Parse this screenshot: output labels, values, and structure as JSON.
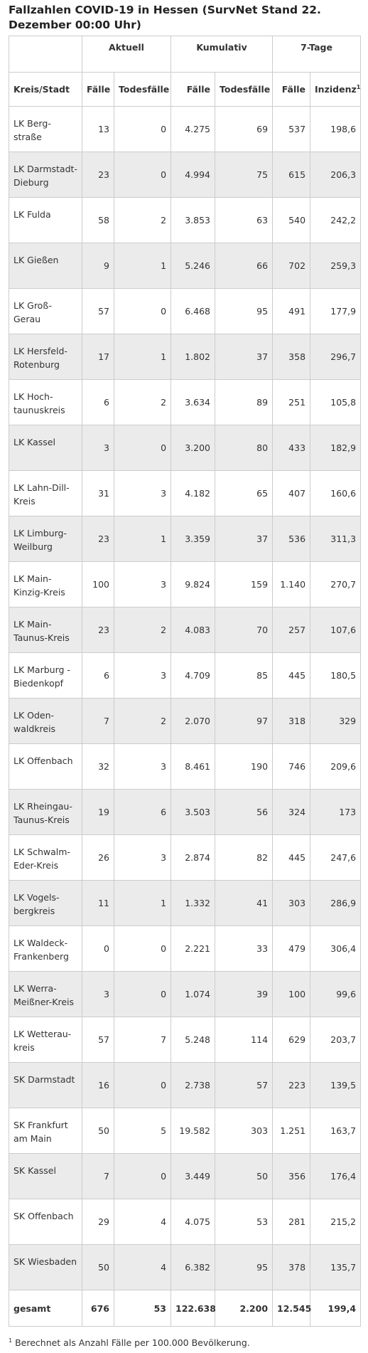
{
  "title": "Fallzahlen COVID-19 in Hessen (SurvNet Stand 22. Dezember 00:00 Uhr)",
  "groups": [
    "Aktuell",
    "Kumulativ",
    "7-Tage"
  ],
  "columns": [
    "Kreis/Stadt",
    "Fälle",
    "Todesfälle",
    "Fälle",
    "Todesfälle",
    "Fälle",
    "Inzidenz"
  ],
  "footnote_marker": "1",
  "rows": [
    [
      "LK Berg-straße",
      "13",
      "0",
      "4.275",
      "69",
      "537",
      "198,6"
    ],
    [
      "LK Darmstadt-Dieburg",
      "23",
      "0",
      "4.994",
      "75",
      "615",
      "206,3"
    ],
    [
      "LK Fulda",
      "58",
      "2",
      "3.853",
      "63",
      "540",
      "242,2"
    ],
    [
      "LK Gießen",
      "9",
      "1",
      "5.246",
      "66",
      "702",
      "259,3"
    ],
    [
      "LK Groß-Gerau",
      "57",
      "0",
      "6.468",
      "95",
      "491",
      "177,9"
    ],
    [
      "LK Hersfeld-Rotenburg",
      "17",
      "1",
      "1.802",
      "37",
      "358",
      "296,7"
    ],
    [
      "LK Hoch-taunuskreis",
      "6",
      "2",
      "3.634",
      "89",
      "251",
      "105,8"
    ],
    [
      "LK Kassel",
      "3",
      "0",
      "3.200",
      "80",
      "433",
      "182,9"
    ],
    [
      "LK Lahn-Dill-Kreis",
      "31",
      "3",
      "4.182",
      "65",
      "407",
      "160,6"
    ],
    [
      "LK Limburg-Weilburg",
      "23",
      "1",
      "3.359",
      "37",
      "536",
      "311,3"
    ],
    [
      "LK Main-Kinzig-Kreis",
      "100",
      "3",
      "9.824",
      "159",
      "1.140",
      "270,7"
    ],
    [
      "LK Main-Taunus-Kreis",
      "23",
      "2",
      "4.083",
      "70",
      "257",
      "107,6"
    ],
    [
      "LK Marburg -Biedenkopf",
      "6",
      "3",
      "4.709",
      "85",
      "445",
      "180,5"
    ],
    [
      "LK Oden-waldkreis",
      "7",
      "2",
      "2.070",
      "97",
      "318",
      "329"
    ],
    [
      "LK Offenbach",
      "32",
      "3",
      "8.461",
      "190",
      "746",
      "209,6"
    ],
    [
      "LK Rheingau-Taunus-Kreis",
      "19",
      "6",
      "3.503",
      "56",
      "324",
      "173"
    ],
    [
      "LK Schwalm-Eder-Kreis",
      "26",
      "3",
      "2.874",
      "82",
      "445",
      "247,6"
    ],
    [
      "LK Vogels-bergkreis",
      "11",
      "1",
      "1.332",
      "41",
      "303",
      "286,9"
    ],
    [
      "LK Waldeck-Frankenberg",
      "0",
      "0",
      "2.221",
      "33",
      "479",
      "306,4"
    ],
    [
      "LK Werra-Meißner-Kreis",
      "3",
      "0",
      "1.074",
      "39",
      "100",
      "99,6"
    ],
    [
      "LK Wetterau-kreis",
      "57",
      "7",
      "5.248",
      "114",
      "629",
      "203,7"
    ],
    [
      "SK Darmstadt",
      "16",
      "0",
      "2.738",
      "57",
      "223",
      "139,5"
    ],
    [
      "SK Frankfurt am Main",
      "50",
      "5",
      "19.582",
      "303",
      "1.251",
      "163,7"
    ],
    [
      "SK Kassel",
      "7",
      "0",
      "3.449",
      "50",
      "356",
      "176,4"
    ],
    [
      "SK Offenbach",
      "29",
      "4",
      "4.075",
      "53",
      "281",
      "215,2"
    ],
    [
      "SK Wiesbaden",
      "50",
      "4",
      "6.382",
      "95",
      "378",
      "135,7"
    ]
  ],
  "total": [
    "gesamt",
    "676",
    "53",
    "122.638",
    "2.200",
    "12.545",
    "199,4"
  ],
  "footnote": "Berechnet als Anzahl Fälle per 100.000 Bevölkerung."
}
